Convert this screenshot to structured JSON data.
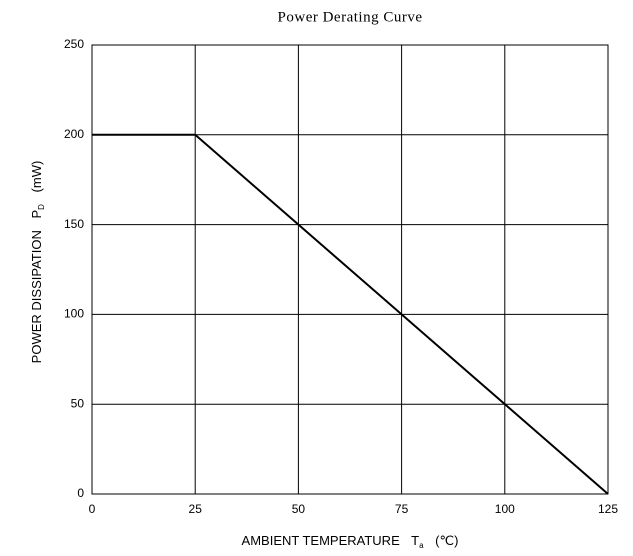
{
  "chart_data": {
    "type": "line",
    "title": "Power Derating Curve",
    "xlabel": "AMBIENT TEMPERATURE",
    "xsymbol": "T",
    "xsub": "a",
    "xunit": "(℃)",
    "ylabel": "POWER DISSIPATION",
    "ysymbol": "P",
    "ysub": "D",
    "yunit": "(mW)",
    "x": [
      0,
      25,
      125
    ],
    "series": [
      {
        "name": "PD",
        "color": "#000000",
        "values": [
          200,
          200,
          0
        ]
      }
    ],
    "xlim": [
      0,
      125
    ],
    "xticks": [
      0,
      25,
      50,
      75,
      100,
      125
    ],
    "ylim": [
      0,
      250
    ],
    "yticks": [
      0,
      50,
      100,
      150,
      200,
      250
    ],
    "grid": true
  }
}
